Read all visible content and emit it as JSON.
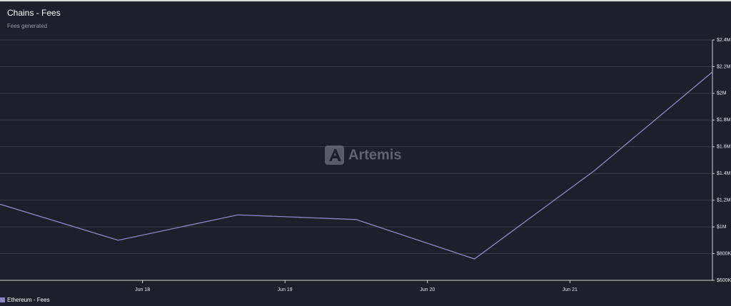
{
  "chart_data": {
    "type": "line",
    "title": "Chains - Fees",
    "subtitle": "Fees generated",
    "watermark": "Artemis",
    "x": [
      17,
      17.83,
      18.67,
      19.5,
      20.33,
      21.17,
      22
    ],
    "xlim": [
      17,
      22
    ],
    "xticks": [
      {
        "value": 18,
        "label": "Jun 18"
      },
      {
        "value": 19,
        "label": "Jun 19"
      },
      {
        "value": 20,
        "label": "Jun 20"
      },
      {
        "value": 21,
        "label": "Jun 21"
      }
    ],
    "series": [
      {
        "name": "Ethereum - Fees",
        "color": "#8f86c9",
        "values": [
          1170000,
          900000,
          1090000,
          1055000,
          760000,
          1420000,
          2160000
        ]
      }
    ],
    "ylim": [
      600000,
      2400000
    ],
    "yticks": [
      {
        "value": 600000,
        "label": "$600K"
      },
      {
        "value": 800000,
        "label": "$800K"
      },
      {
        "value": 1000000,
        "label": "$1M"
      },
      {
        "value": 1200000,
        "label": "$1.2M"
      },
      {
        "value": 1400000,
        "label": "$1.4M"
      },
      {
        "value": 1600000,
        "label": "$1.6M"
      },
      {
        "value": 1800000,
        "label": "$1.8M"
      },
      {
        "value": 2000000,
        "label": "$2M"
      },
      {
        "value": 2200000,
        "label": "$2.2M"
      },
      {
        "value": 2400000,
        "label": "$2.4M"
      }
    ],
    "grid": true,
    "legend": "bottom-left"
  }
}
